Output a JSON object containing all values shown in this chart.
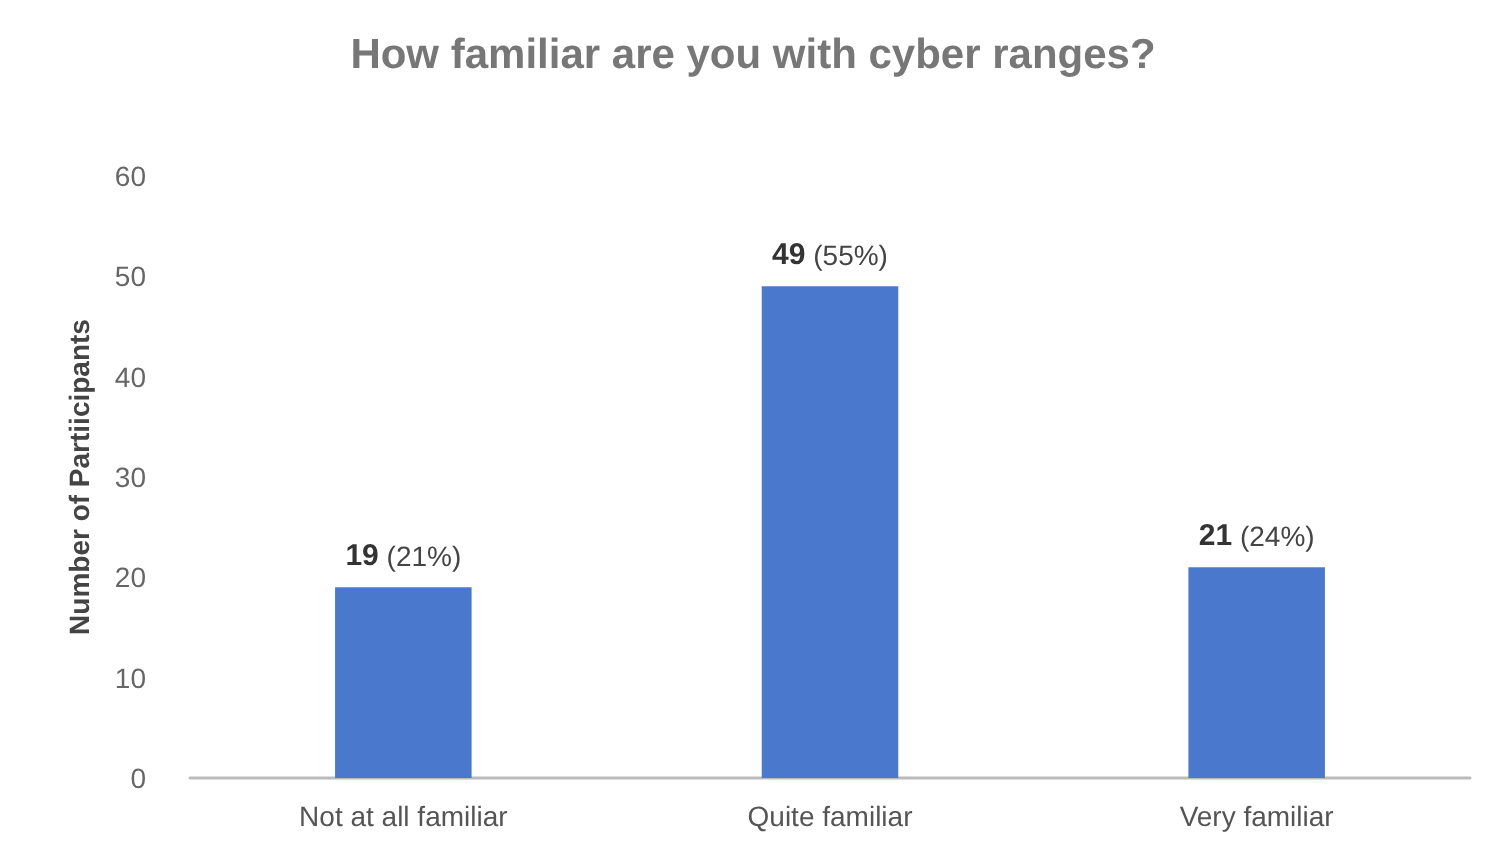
{
  "chart_data": {
    "type": "bar",
    "title": "How familiar are you with cyber ranges?",
    "ylabel": "Number of Partiicipants",
    "categories": [
      "Not at all familiar",
      "Quite familiar",
      "Very familiar"
    ],
    "values": [
      19,
      49,
      21
    ],
    "value_labels": [
      "19 (21%)",
      "49 (55%)",
      "21 (24%)"
    ],
    "color": "#4a78cc",
    "ylim": [
      0,
      60
    ],
    "yticks": [
      0,
      10,
      20,
      30,
      40,
      50,
      60
    ],
    "grid": false
  }
}
